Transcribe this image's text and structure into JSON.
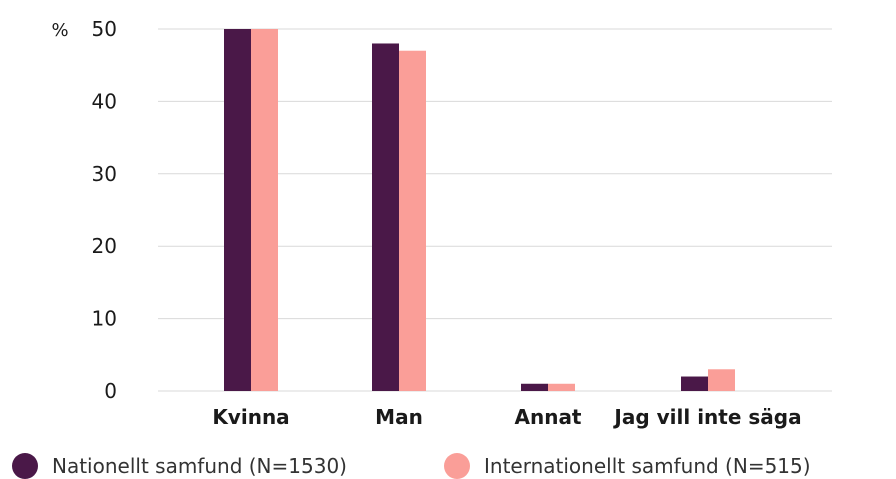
{
  "chart_data": {
    "type": "bar",
    "y_unit_label": "%",
    "categories": [
      "Kvinna",
      "Man",
      "Annat",
      "Jag vill inte säga"
    ],
    "series": [
      {
        "name": "Nationellt samfund (N=1530)",
        "values": [
          50,
          48,
          1,
          2
        ],
        "color": "#4a1848"
      },
      {
        "name": "Internationellt samfund (N=515)",
        "values": [
          50,
          47,
          1,
          3
        ],
        "color": "#fa9e98"
      }
    ],
    "yticks": [
      0,
      10,
      20,
      30,
      40,
      50
    ],
    "ylim": [
      0,
      50
    ],
    "grid": true,
    "legend_position": "bottom"
  }
}
